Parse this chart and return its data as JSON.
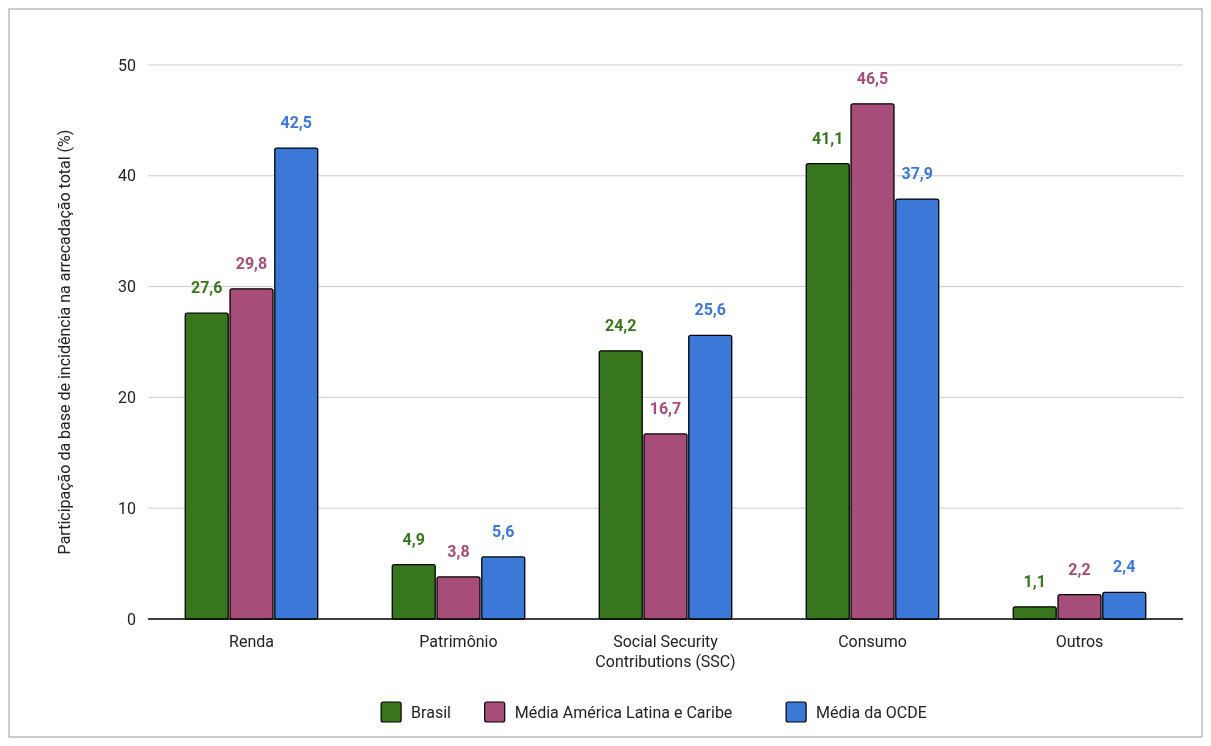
{
  "chart_data": {
    "type": "bar",
    "ylabel": "Participação da base de incidência na arrecadação total (%)",
    "categories": [
      "Renda",
      "Patrimônio",
      "Social Security Contributions (SSC)",
      "Consumo",
      "Outros"
    ],
    "series": [
      {
        "name": "Brasil",
        "color": "#38761d",
        "values": [
          27.6,
          4.9,
          24.2,
          41.1,
          1.1
        ],
        "value_labels": [
          "27,6",
          "4,9",
          "24,2",
          "41,1",
          "1,1"
        ]
      },
      {
        "name": "Média América Latina e Caribe",
        "color": "#a64d79",
        "values": [
          29.8,
          3.8,
          16.7,
          46.5,
          2.2
        ],
        "value_labels": [
          "29,8",
          "3,8",
          "16,7",
          "46,5",
          "2,2"
        ]
      },
      {
        "name": "Média da OCDE",
        "color": "#3c78d8",
        "values": [
          42.5,
          5.6,
          25.6,
          37.9,
          2.4
        ],
        "value_labels": [
          "42,5",
          "5,6",
          "25,6",
          "37,9",
          "2,4"
        ]
      }
    ],
    "ylim": [
      0,
      50
    ],
    "yticks": [
      0,
      10,
      20,
      30,
      40,
      50
    ],
    "grid": "y",
    "legend": "bottom"
  }
}
